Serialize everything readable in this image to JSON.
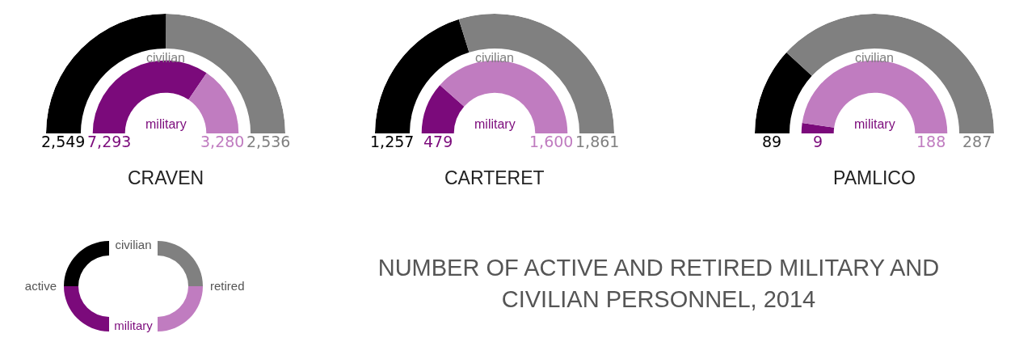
{
  "chart_data": [
    {
      "type": "donut",
      "title": "CRAVEN",
      "categories": [
        "active",
        "retired"
      ],
      "series": [
        {
          "name": "civilian",
          "values": [
            2549,
            2536
          ],
          "value_labels": [
            "2,549",
            "2,536"
          ],
          "colors": [
            "#000000",
            "#808080"
          ]
        },
        {
          "name": "military",
          "values": [
            7293,
            3280
          ],
          "value_labels": [
            "7,293",
            "3,280"
          ],
          "colors": [
            "#7b0a7b",
            "#c07cc0"
          ]
        }
      ]
    },
    {
      "type": "donut",
      "title": "CARTERET",
      "series": [
        {
          "name": "civilian",
          "values": [
            1257,
            1861
          ],
          "value_labels": [
            "1,257",
            "1,861"
          ],
          "colors": [
            "#000000",
            "#808080"
          ]
        },
        {
          "name": "military",
          "values": [
            479,
            1600
          ],
          "value_labels": [
            "479",
            "1,600"
          ],
          "colors": [
            "#7b0a7b",
            "#c07cc0"
          ]
        }
      ]
    },
    {
      "type": "donut",
      "title": "PAMLICO",
      "series": [
        {
          "name": "civilian",
          "values": [
            89,
            287
          ],
          "value_labels": [
            "89",
            "287"
          ],
          "colors": [
            "#000000",
            "#808080"
          ]
        },
        {
          "name": "military",
          "values": [
            9,
            188
          ],
          "value_labels": [
            "9",
            "188"
          ],
          "colors": [
            "#7b0a7b",
            "#c07cc0"
          ]
        }
      ]
    },
    {
      "type": "other",
      "title": "NUMBER OF ACTIVE AND RETIRED MILITARY AND CIVILIAN PERSONNEL, 2014"
    }
  ]
}
